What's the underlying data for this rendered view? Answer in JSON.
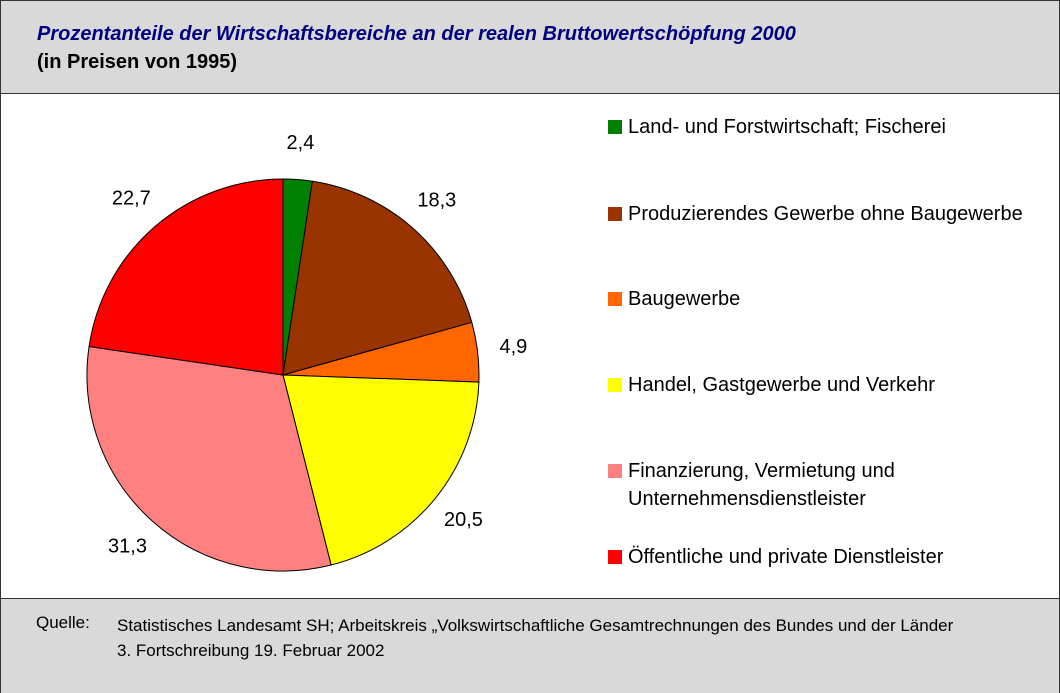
{
  "header": {
    "title": "Prozentanteile der Wirtschaftsbereiche an der realen Bruttowertschöpfung 2000",
    "subtitle": "(in Preisen von 1995)"
  },
  "chart_data": {
    "type": "pie",
    "categories": [
      "Land- und Forstwirtschaft; Fischerei",
      "Produzierendes Gewerbe ohne Baugewerbe",
      "Baugewerbe",
      "Handel, Gastgewerbe und Verkehr",
      "Finanzierung, Vermietung und Unternehmensdienstleister",
      "Öffentliche und private Dienstleister"
    ],
    "values": [
      2.4,
      18.3,
      4.9,
      20.5,
      31.3,
      22.7
    ],
    "value_labels": [
      "2,4",
      "18,3",
      "4,9",
      "20,5",
      "31,3",
      "22,7"
    ],
    "colors": [
      "#008000",
      "#993300",
      "#ff6600",
      "#ffff00",
      "#ff8080",
      "#ff0000"
    ],
    "legend": "right"
  },
  "footer": {
    "source_label": "Quelle:",
    "source_lines": [
      "Statistisches Landesamt SH; Arbeitskreis „Volkswirtschaftliche Gesamtrechnungen des Bundes und der Länder",
      "3. Fortschreibung 19. Februar 2002"
    ]
  }
}
